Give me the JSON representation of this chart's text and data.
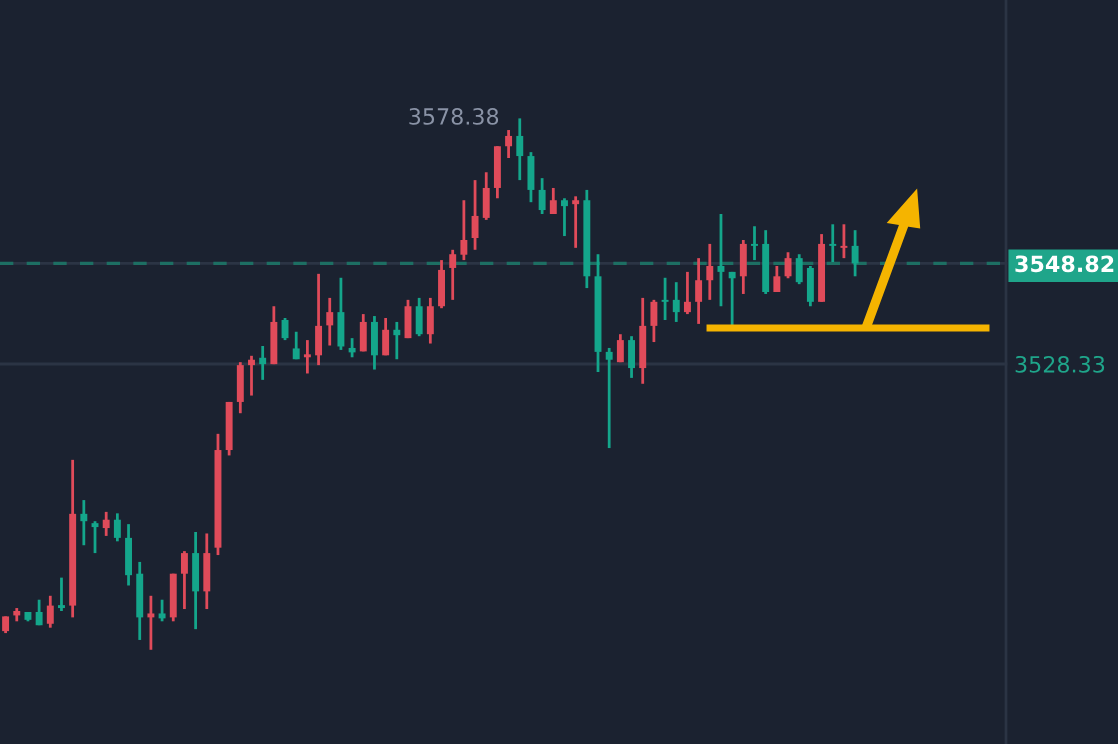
{
  "chart_data": {
    "type": "candlestick",
    "categories": [
      null,
      null,
      null,
      null,
      null,
      null,
      null,
      null,
      null,
      null,
      null,
      null,
      null,
      null,
      null,
      null,
      null,
      null,
      null,
      null,
      null,
      null,
      null,
      null,
      null,
      null,
      null,
      null,
      null,
      null,
      null,
      null,
      null,
      null,
      null,
      null,
      null,
      null,
      null,
      null,
      null,
      null,
      null,
      null,
      null,
      null,
      null,
      null,
      null,
      null,
      null,
      null,
      null,
      null,
      null,
      null,
      null,
      null,
      null,
      null,
      null,
      null,
      null,
      null,
      null,
      null,
      null,
      null,
      null,
      null,
      null,
      null,
      null,
      null,
      null,
      null,
      null,
      null,
      null,
      null,
      null,
      null,
      null,
      null,
      null,
      null,
      null,
      null,
      null,
      null
    ],
    "ohlc": [
      [
        3473.9,
        3476.9,
        3473.5,
        3476.9
      ],
      [
        3477.1,
        3478.6,
        3475.9,
        3478.0
      ],
      [
        3477.8,
        3477.8,
        3475.9,
        3476.2
      ],
      [
        3477.8,
        3480.3,
        3475.1,
        3475.1
      ],
      [
        3475.4,
        3481.1,
        3474.6,
        3479.1
      ],
      [
        3479.2,
        3484.8,
        3478.0,
        3478.6
      ],
      [
        3479.1,
        3508.8,
        3476.7,
        3497.8
      ],
      [
        3497.8,
        3500.6,
        3491.4,
        3496.3
      ],
      [
        3495.9,
        3496.3,
        3489.8,
        3495.1
      ],
      [
        3494.9,
        3498.2,
        3493.3,
        3496.6
      ],
      [
        3496.6,
        3497.9,
        3492.2,
        3492.9
      ],
      [
        3492.9,
        3495.7,
        3483.2,
        3485.3
      ],
      [
        3485.6,
        3488.0,
        3472.1,
        3476.7
      ],
      [
        3476.7,
        3481.1,
        3470.1,
        3477.5
      ],
      [
        3477.5,
        3480.3,
        3475.9,
        3476.5
      ],
      [
        3476.7,
        3485.6,
        3475.9,
        3485.6
      ],
      [
        3485.6,
        3490.2,
        3478.4,
        3489.8
      ],
      [
        3489.8,
        3494.1,
        3474.3,
        3482.0
      ],
      [
        3482.0,
        3493.8,
        3478.4,
        3489.8
      ],
      [
        3490.9,
        3514.1,
        3489.4,
        3510.8
      ],
      [
        3510.8,
        3520.6,
        3509.7,
        3520.6
      ],
      [
        3520.6,
        3528.7,
        3518.3,
        3528.1
      ],
      [
        3528.1,
        3530.0,
        3521.9,
        3529.2
      ],
      [
        3529.6,
        3532.0,
        3525.1,
        3528.3
      ],
      [
        3528.3,
        3540.1,
        3528.3,
        3536.9
      ],
      [
        3537.3,
        3537.7,
        3533.2,
        3533.6
      ],
      [
        3531.5,
        3534.9,
        3529.3,
        3529.3
      ],
      [
        3529.7,
        3533.2,
        3526.4,
        3530.3
      ],
      [
        3530.1,
        3546.7,
        3528.1,
        3536.1
      ],
      [
        3536.2,
        3541.8,
        3532.1,
        3538.9
      ],
      [
        3538.9,
        3545.9,
        3531.2,
        3531.9
      ],
      [
        3531.6,
        3533.6,
        3529.7,
        3530.7
      ],
      [
        3530.9,
        3538.5,
        3530.9,
        3536.9
      ],
      [
        3536.9,
        3538.1,
        3527.2,
        3530.1
      ],
      [
        3530.1,
        3537.7,
        3530.1,
        3535.3
      ],
      [
        3535.3,
        3536.9,
        3529.3,
        3534.2
      ],
      [
        3533.6,
        3541.4,
        3533.6,
        3540.1
      ],
      [
        3540.1,
        3541.8,
        3534.0,
        3534.4
      ],
      [
        3534.4,
        3541.8,
        3532.5,
        3540.1
      ],
      [
        3540.1,
        3549.5,
        3539.7,
        3547.5
      ],
      [
        3547.9,
        3551.6,
        3541.4,
        3550.7
      ],
      [
        3550.6,
        3561.7,
        3549.5,
        3553.6
      ],
      [
        3554.0,
        3565.8,
        3551.6,
        3558.5
      ],
      [
        3558.1,
        3567.4,
        3557.7,
        3564.2
      ],
      [
        3564.2,
        3572.7,
        3562.1,
        3572.7
      ],
      [
        3572.7,
        3576.0,
        3570.3,
        3574.8
      ],
      [
        3574.8,
        3578.38,
        3565.8,
        3570.7
      ],
      [
        3570.7,
        3571.5,
        3561.3,
        3563.8
      ],
      [
        3563.8,
        3566.2,
        3558.9,
        3559.7
      ],
      [
        3558.9,
        3564.2,
        3558.9,
        3561.7
      ],
      [
        3561.7,
        3562.1,
        3554.4,
        3560.5
      ],
      [
        3560.9,
        3562.5,
        3552.0,
        3561.7
      ],
      [
        3561.7,
        3563.8,
        3543.8,
        3546.2
      ],
      [
        3546.2,
        3550.7,
        3526.7,
        3530.8
      ],
      [
        3530.8,
        3531.6,
        3511.2,
        3529.2
      ],
      [
        3528.7,
        3534.4,
        3528.7,
        3533.2
      ],
      [
        3533.2,
        3534.0,
        3525.5,
        3527.5
      ],
      [
        3527.5,
        3541.8,
        3524.3,
        3536.1
      ],
      [
        3536.1,
        3541.4,
        3532.8,
        3541.0
      ],
      [
        3541.4,
        3545.9,
        3537.3,
        3541.0
      ],
      [
        3541.4,
        3545.0,
        3536.9,
        3538.9
      ],
      [
        3538.9,
        3547.1,
        3538.5,
        3541.0
      ],
      [
        3541.0,
        3549.9,
        3536.5,
        3545.4
      ],
      [
        3545.4,
        3552.8,
        3541.4,
        3548.3
      ],
      [
        3548.3,
        3558.9,
        3540.1,
        3547.1
      ],
      [
        3547.1,
        3547.1,
        3535.7,
        3545.8
      ],
      [
        3546.2,
        3553.6,
        3542.6,
        3552.8
      ],
      [
        3552.8,
        3556.4,
        3549.5,
        3552.4
      ],
      [
        3552.8,
        3555.6,
        3542.6,
        3543.0
      ],
      [
        3543.0,
        3548.3,
        3543.0,
        3546.2
      ],
      [
        3546.2,
        3551.1,
        3545.8,
        3549.9
      ],
      [
        3549.9,
        3550.7,
        3544.6,
        3545.0
      ],
      [
        3547.9,
        3548.3,
        3540.1,
        3541.0
      ],
      [
        3541.0,
        3554.8,
        3541.0,
        3552.8
      ],
      [
        3552.8,
        3556.8,
        3549.1,
        3552.4
      ],
      [
        3552.0,
        3556.8,
        3549.9,
        3552.4
      ],
      [
        3552.4,
        3555.6,
        3546.2,
        3548.82
      ],
      null,
      null,
      null,
      null,
      null,
      null,
      null,
      null,
      null,
      null,
      null,
      null,
      null
    ],
    "ylim": [
      3450.9,
      3602.5
    ],
    "yticks": [
      3528.33,
      3548.82
    ],
    "tick_labels": "y",
    "grid": "y",
    "ref_lines": [
      {
        "axis": "y",
        "value": 3548.82,
        "color": "#1d6f63",
        "line_style": "dashed"
      }
    ],
    "annotations": [
      "3578.38"
    ]
  }
}
